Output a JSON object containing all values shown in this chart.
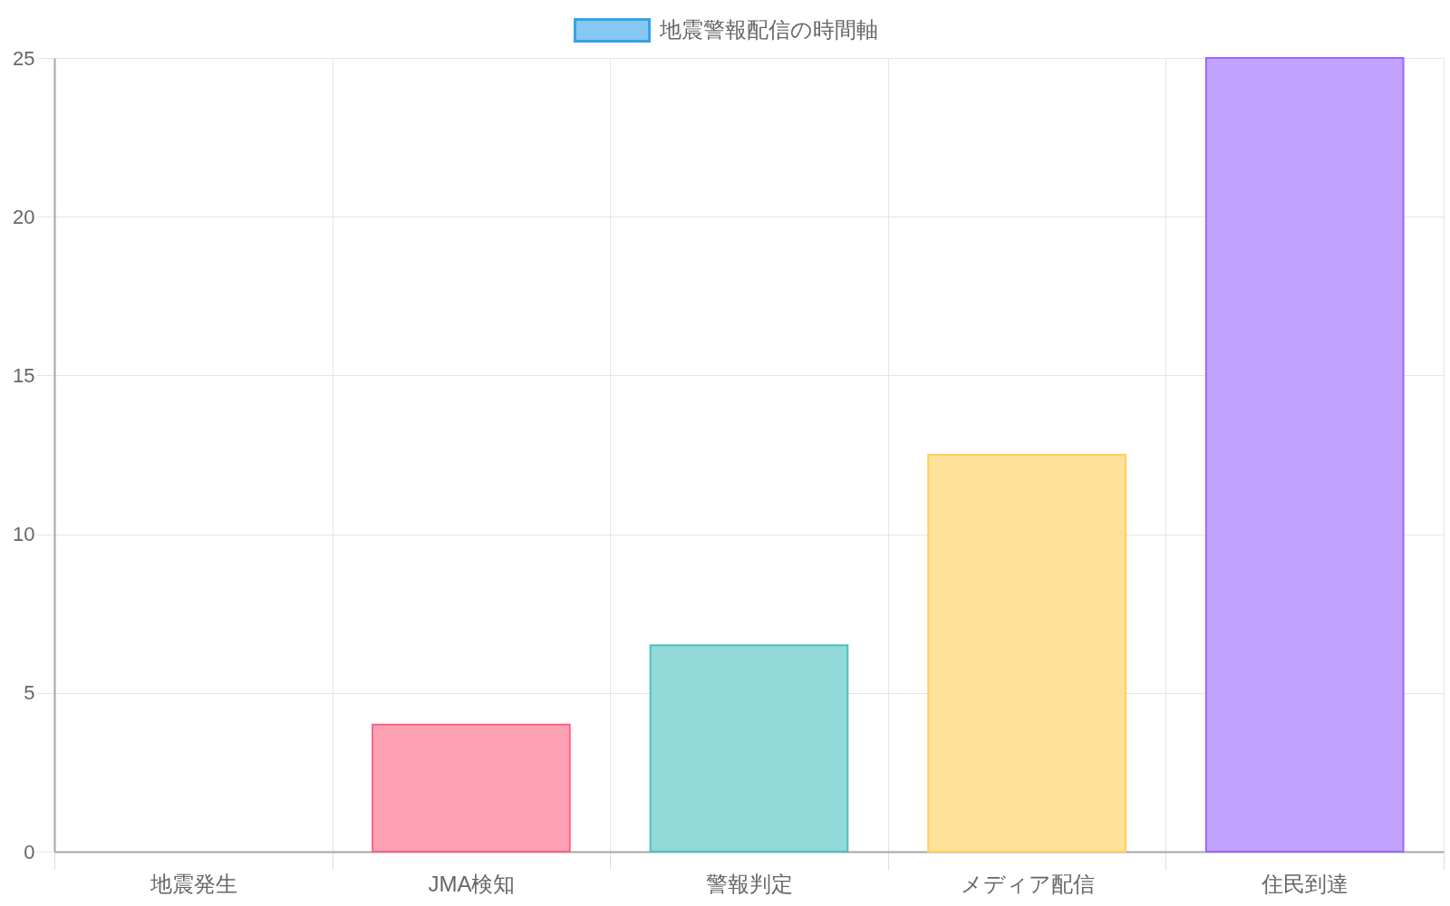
{
  "chart_data": {
    "type": "bar",
    "categories": [
      "地震発生",
      "JMA検知",
      "警報判定",
      "メディア配信",
      "住民到達"
    ],
    "series": [
      {
        "name": "地震警報配信の時間軸",
        "color": "#86c7f3",
        "colors": [
          "#86c7f3",
          "#ffa1b5",
          "#93d9d9",
          "#ffe29a",
          "#c2a3ff"
        ],
        "values": [
          0,
          4,
          6.5,
          12.5,
          25
        ]
      }
    ],
    "ylim": [
      0,
      25
    ],
    "yticks": [
      0,
      5,
      10,
      15,
      20,
      25
    ],
    "grid": true,
    "legend": "top"
  }
}
